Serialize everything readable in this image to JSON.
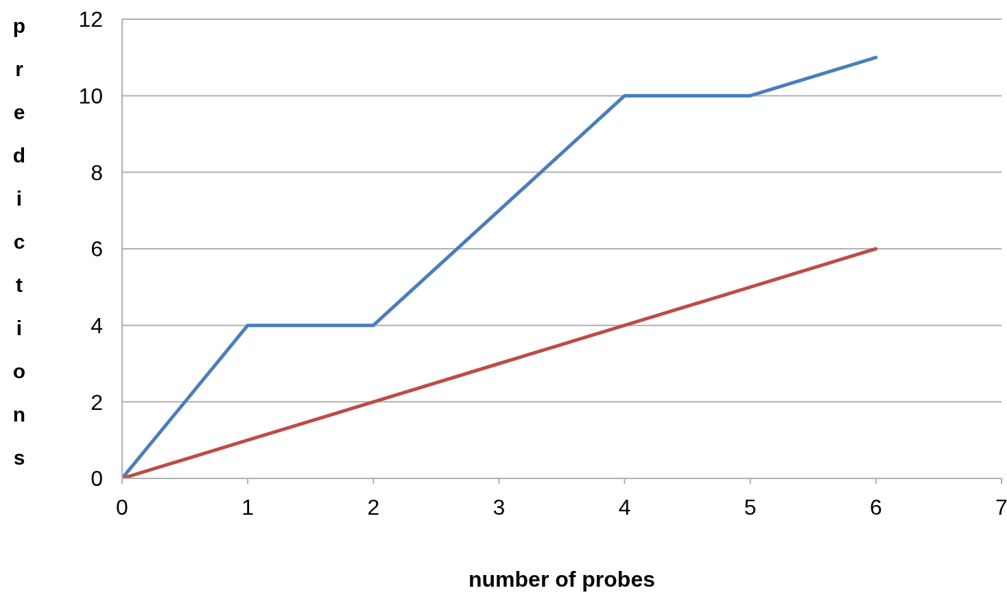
{
  "chart_data": {
    "type": "line",
    "xlabel": "number of probes",
    "ylabel": "predictions",
    "x": [
      0,
      1,
      2,
      3,
      4,
      5,
      6
    ],
    "series": [
      {
        "color": "#4a7ebb",
        "values": [
          0,
          4,
          4,
          7,
          10,
          10,
          11
        ]
      },
      {
        "color": "#be4b48",
        "values": [
          0,
          1,
          2,
          3,
          4,
          5,
          6
        ]
      }
    ],
    "xlim": [
      0,
      7
    ],
    "xticks": [
      0,
      1,
      2,
      3,
      4,
      5,
      6,
      7
    ],
    "ylim": [
      0,
      12
    ],
    "yticks": [
      0,
      2,
      4,
      6,
      8,
      10,
      12
    ],
    "grid": "y",
    "marker": "none",
    "line_style": "solid"
  }
}
